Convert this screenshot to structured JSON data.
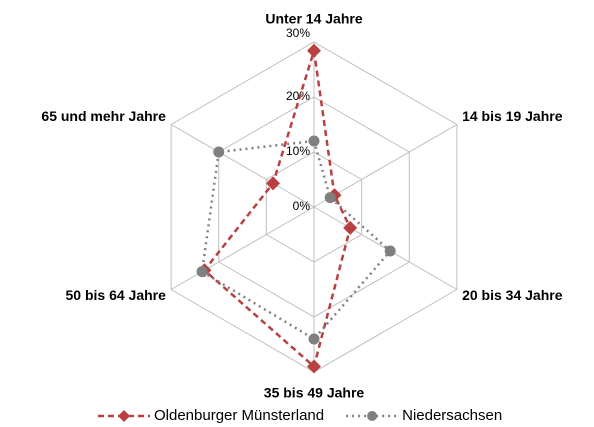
{
  "chart_data": {
    "type": "radar",
    "categories": [
      "Unter 14 Jahre",
      "14 bis 19 Jahre",
      "20 bis 34 Jahre",
      "35 bis 49 Jahre",
      "50 bis 64 Jahre",
      "65 und mehr Jahre"
    ],
    "series": [
      {
        "name": "Oldenburger Münsterland",
        "color": "#b94040",
        "dash": "6,4",
        "marker": "diamond",
        "values": [
          28.4,
          4.3,
          7.6,
          29,
          23,
          8.6
        ]
      },
      {
        "name": "Niedersachsen",
        "color": "#808080",
        "dash": "2,4",
        "marker": "circle",
        "values": [
          12,
          3.4,
          16,
          24,
          23.5,
          20
        ]
      }
    ],
    "ylim": [
      0,
      30
    ],
    "yticks": [
      {
        "value": 0,
        "label": "0%"
      },
      {
        "value": 10,
        "label": "10%"
      },
      {
        "value": 20,
        "label": "20%"
      },
      {
        "value": 30,
        "label": "30%"
      }
    ],
    "grid": true,
    "legend": "bottom"
  }
}
